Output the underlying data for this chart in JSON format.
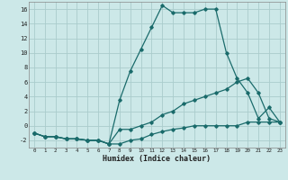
{
  "xlabel": "Humidex (Indice chaleur)",
  "background_color": "#cce8e8",
  "grid_color": "#aacccc",
  "line_color": "#1a6b6b",
  "xlim": [
    -0.5,
    23.5
  ],
  "ylim": [
    -3.0,
    17.0
  ],
  "xticks": [
    0,
    1,
    2,
    3,
    4,
    5,
    6,
    7,
    8,
    9,
    10,
    11,
    12,
    13,
    14,
    15,
    16,
    17,
    18,
    19,
    20,
    21,
    22,
    23
  ],
  "yticks": [
    -2,
    0,
    2,
    4,
    6,
    8,
    10,
    12,
    14,
    16
  ],
  "line1_x": [
    0,
    1,
    2,
    3,
    4,
    5,
    6,
    7,
    8,
    9,
    10,
    11,
    12,
    13,
    14,
    15,
    16,
    17,
    18,
    19,
    20,
    21,
    22,
    23
  ],
  "line1_y": [
    -1,
    -1.5,
    -1.5,
    -1.8,
    -1.8,
    -2,
    -2,
    -2.5,
    -2.5,
    -2,
    -1.8,
    -1.2,
    -0.8,
    -0.5,
    -0.3,
    0,
    0,
    0,
    0,
    0,
    0.5,
    0.5,
    0.5,
    0.5
  ],
  "line2_x": [
    0,
    1,
    2,
    3,
    4,
    5,
    6,
    7,
    8,
    9,
    10,
    11,
    12,
    13,
    14,
    15,
    16,
    17,
    18,
    19,
    20,
    21,
    22,
    23
  ],
  "line2_y": [
    -1,
    -1.5,
    -1.5,
    -1.8,
    -1.8,
    -2,
    -2,
    -2.5,
    3.5,
    7.5,
    10.5,
    13.5,
    16.5,
    15.5,
    15.5,
    15.5,
    16,
    16,
    10,
    6.5,
    4.5,
    1,
    2.5,
    0.5
  ],
  "line3_x": [
    0,
    1,
    2,
    3,
    4,
    5,
    6,
    7,
    8,
    9,
    10,
    11,
    12,
    13,
    14,
    15,
    16,
    17,
    18,
    19,
    20,
    21,
    22,
    23
  ],
  "line3_y": [
    -1,
    -1.5,
    -1.5,
    -1.8,
    -1.8,
    -2,
    -2,
    -2.5,
    -0.5,
    -0.5,
    0,
    0.5,
    1.5,
    2,
    3,
    3.5,
    4,
    4.5,
    5,
    6,
    6.5,
    4.5,
    1,
    0.5
  ]
}
